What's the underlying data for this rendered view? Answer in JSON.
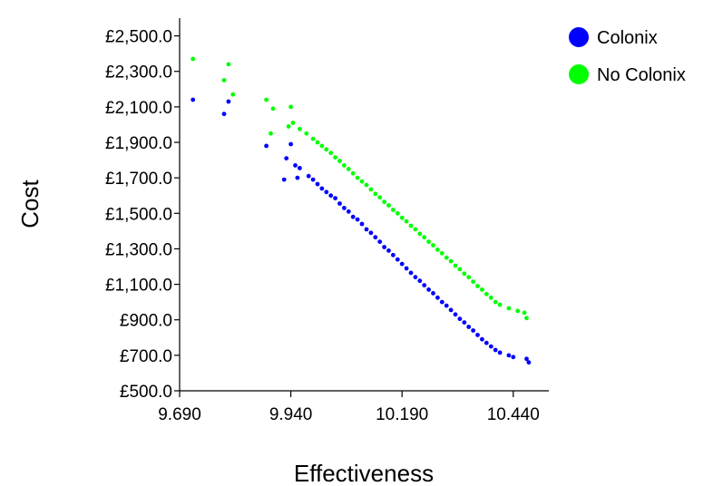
{
  "chart_data": {
    "type": "scatter",
    "title": "",
    "xlabel": "Effectiveness",
    "ylabel": "Cost",
    "xlim": [
      9.69,
      10.52
    ],
    "ylim": [
      500,
      2600
    ],
    "x_ticks": [
      9.69,
      9.94,
      10.19,
      10.44
    ],
    "x_tick_labels": [
      "9.690",
      "9.940",
      "10.190",
      "10.440"
    ],
    "y_ticks": [
      500,
      700,
      900,
      1100,
      1300,
      1500,
      1700,
      1900,
      2100,
      2300,
      2500
    ],
    "y_tick_labels": [
      "£500.0",
      "£700.0",
      "£900.0",
      "£1,100.0",
      "£1,300.0",
      "£1,500.0",
      "£1,700.0",
      "£1,900.0",
      "£2,100.0",
      "£2,300.0",
      "£2,500.0"
    ],
    "grid": false,
    "legend_position": "top-right",
    "series": [
      {
        "name": "Colonix",
        "color": "#0000ff",
        "points": [
          [
            9.72,
            2140
          ],
          [
            9.79,
            2060
          ],
          [
            9.8,
            2130
          ],
          [
            9.885,
            1880
          ],
          [
            9.94,
            1890
          ],
          [
            9.93,
            1810
          ],
          [
            9.95,
            1770
          ],
          [
            9.96,
            1755
          ],
          [
            9.925,
            1690
          ],
          [
            9.955,
            1700
          ],
          [
            9.98,
            1710
          ],
          [
            9.99,
            1690
          ],
          [
            10.0,
            1665
          ],
          [
            10.01,
            1640
          ],
          [
            10.02,
            1620
          ],
          [
            10.03,
            1600
          ],
          [
            10.04,
            1585
          ],
          [
            10.05,
            1555
          ],
          [
            10.06,
            1530
          ],
          [
            10.07,
            1510
          ],
          [
            10.08,
            1480
          ],
          [
            10.09,
            1465
          ],
          [
            10.1,
            1440
          ],
          [
            10.11,
            1410
          ],
          [
            10.12,
            1390
          ],
          [
            10.13,
            1365
          ],
          [
            10.14,
            1340
          ],
          [
            10.15,
            1310
          ],
          [
            10.16,
            1290
          ],
          [
            10.17,
            1265
          ],
          [
            10.18,
            1240
          ],
          [
            10.19,
            1215
          ],
          [
            10.2,
            1190
          ],
          [
            10.21,
            1165
          ],
          [
            10.22,
            1140
          ],
          [
            10.23,
            1120
          ],
          [
            10.24,
            1095
          ],
          [
            10.25,
            1070
          ],
          [
            10.26,
            1050
          ],
          [
            10.27,
            1025
          ],
          [
            10.28,
            1000
          ],
          [
            10.29,
            980
          ],
          [
            10.3,
            955
          ],
          [
            10.31,
            930
          ],
          [
            10.32,
            905
          ],
          [
            10.33,
            885
          ],
          [
            10.34,
            860
          ],
          [
            10.35,
            840
          ],
          [
            10.36,
            815
          ],
          [
            10.37,
            790
          ],
          [
            10.38,
            770
          ],
          [
            10.39,
            750
          ],
          [
            10.4,
            730
          ],
          [
            10.41,
            715
          ],
          [
            10.43,
            700
          ],
          [
            10.44,
            690
          ],
          [
            10.47,
            680
          ],
          [
            10.475,
            660
          ]
        ]
      },
      {
        "name": "No Colonix",
        "color": "#00ff00",
        "points": [
          [
            9.72,
            2370
          ],
          [
            9.8,
            2340
          ],
          [
            9.79,
            2250
          ],
          [
            9.81,
            2170
          ],
          [
            9.885,
            2140
          ],
          [
            9.9,
            2090
          ],
          [
            9.94,
            2100
          ],
          [
            9.895,
            1950
          ],
          [
            9.935,
            1990
          ],
          [
            9.945,
            2010
          ],
          [
            9.96,
            1975
          ],
          [
            9.975,
            1950
          ],
          [
            9.99,
            1920
          ],
          [
            10.0,
            1900
          ],
          [
            10.01,
            1880
          ],
          [
            10.02,
            1860
          ],
          [
            10.03,
            1840
          ],
          [
            10.04,
            1815
          ],
          [
            10.05,
            1795
          ],
          [
            10.06,
            1770
          ],
          [
            10.07,
            1750
          ],
          [
            10.08,
            1725
          ],
          [
            10.09,
            1700
          ],
          [
            10.1,
            1680
          ],
          [
            10.11,
            1660
          ],
          [
            10.12,
            1635
          ],
          [
            10.13,
            1610
          ],
          [
            10.14,
            1590
          ],
          [
            10.15,
            1565
          ],
          [
            10.16,
            1545
          ],
          [
            10.17,
            1520
          ],
          [
            10.18,
            1500
          ],
          [
            10.19,
            1475
          ],
          [
            10.2,
            1455
          ],
          [
            10.21,
            1430
          ],
          [
            10.22,
            1410
          ],
          [
            10.23,
            1385
          ],
          [
            10.24,
            1365
          ],
          [
            10.25,
            1340
          ],
          [
            10.26,
            1320
          ],
          [
            10.27,
            1295
          ],
          [
            10.28,
            1275
          ],
          [
            10.29,
            1250
          ],
          [
            10.3,
            1230
          ],
          [
            10.31,
            1205
          ],
          [
            10.32,
            1185
          ],
          [
            10.33,
            1160
          ],
          [
            10.34,
            1140
          ],
          [
            10.35,
            1115
          ],
          [
            10.36,
            1090
          ],
          [
            10.37,
            1070
          ],
          [
            10.38,
            1045
          ],
          [
            10.39,
            1025
          ],
          [
            10.4,
            1000
          ],
          [
            10.41,
            985
          ],
          [
            10.43,
            965
          ],
          [
            10.45,
            950
          ],
          [
            10.465,
            940
          ],
          [
            10.47,
            910
          ]
        ]
      }
    ]
  }
}
